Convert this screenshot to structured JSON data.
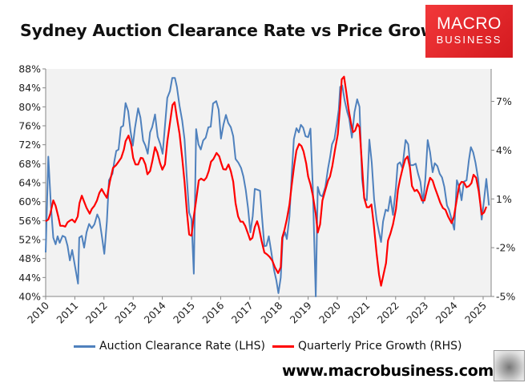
{
  "title": "Sydney Auction Clearance Rate vs Price Growth",
  "logo": {
    "line1": "MACRO",
    "line2": "BUSINESS",
    "color": "#e3252a"
  },
  "website": "www.macrobusiness.com.au",
  "wolf_image": "wolf-logo",
  "chart_data": {
    "type": "line",
    "title": "Sydney Auction Clearance Rate vs Price Growth",
    "xlim": [
      2010,
      2025.3
    ],
    "x_tick_labels": [
      "2010",
      "2011",
      "2012",
      "2013",
      "2014",
      "2015",
      "2016",
      "2017",
      "2018",
      "2019",
      "2020",
      "2021",
      "2022",
      "2023",
      "2024",
      "2025"
    ],
    "y_left": {
      "ylim": [
        40,
        88
      ],
      "tick_labels": [
        "40%",
        "44%",
        "48%",
        "52%",
        "56%",
        "60%",
        "64%",
        "68%",
        "72%",
        "76%",
        "80%",
        "84%",
        "88%"
      ],
      "ticks": [
        40,
        44,
        48,
        52,
        56,
        60,
        64,
        68,
        72,
        76,
        80,
        84,
        88
      ]
    },
    "y_right": {
      "ylim": [
        -5,
        9
      ],
      "tick_labels": [
        "-5%",
        "-2%",
        "1%",
        "4%",
        "7%"
      ],
      "ticks": [
        -5,
        -2,
        1,
        4,
        7
      ]
    },
    "grid": false,
    "plot_background": "#f2f2f2",
    "legend_position": "bottom",
    "series": [
      {
        "name": "Auction Clearance Rate (LHS)",
        "axis": "left",
        "color": "#4f81bd",
        "x": [
          2010.0,
          2010.09,
          2010.18,
          2010.26,
          2010.34,
          2010.41,
          2010.48,
          2010.58,
          2010.67,
          2010.75,
          2010.83,
          2010.91,
          2011.01,
          2011.11,
          2011.15,
          2011.24,
          2011.32,
          2011.4,
          2011.49,
          2011.58,
          2011.67,
          2011.77,
          2011.84,
          2011.92,
          2012.01,
          2012.1,
          2012.17,
          2012.29,
          2012.36,
          2012.42,
          2012.5,
          2012.58,
          2012.66,
          2012.74,
          2012.83,
          2012.91,
          2012.99,
          2013.06,
          2013.17,
          2013.25,
          2013.34,
          2013.42,
          2013.5,
          2013.58,
          2013.65,
          2013.75,
          2013.84,
          2013.93,
          2014.01,
          2014.09,
          2014.17,
          2014.26,
          2014.34,
          2014.43,
          2014.5,
          2014.59,
          2014.68,
          2014.76,
          2014.84,
          2014.92,
          2015.0,
          2015.08,
          2015.16,
          2015.24,
          2015.32,
          2015.4,
          2015.49,
          2015.58,
          2015.66,
          2015.74,
          2015.85,
          2015.93,
          2016.01,
          2016.1,
          2016.18,
          2016.26,
          2016.35,
          2016.43,
          2016.51,
          2016.61,
          2016.7,
          2016.78,
          2016.86,
          2016.94,
          2017.02,
          2017.1,
          2017.17,
          2017.27,
          2017.35,
          2017.42,
          2017.5,
          2017.57,
          2017.65,
          2017.73,
          2017.83,
          2017.91,
          2017.98,
          2018.06,
          2018.13,
          2018.21,
          2018.27,
          2018.36,
          2018.43,
          2018.51,
          2018.6,
          2018.68,
          2018.75,
          2018.83,
          2018.91,
          2019.0,
          2019.08,
          2019.16,
          2019.26,
          2019.33,
          2019.41,
          2019.49,
          2019.59,
          2019.68,
          2019.75,
          2019.82,
          2019.9,
          2019.98,
          2020.05,
          2020.1,
          2020.17,
          2020.25,
          2020.34,
          2020.41,
          2020.5,
          2020.59,
          2020.68,
          2020.76,
          2020.85,
          2020.93,
          2021.01,
          2021.1,
          2021.18,
          2021.26,
          2021.35,
          2021.43,
          2021.5,
          2021.57,
          2021.66,
          2021.74,
          2021.82,
          2021.91,
          2022.01,
          2022.07,
          2022.15,
          2022.23,
          2022.34,
          2022.43,
          2022.5,
          2022.6,
          2022.69,
          2022.77,
          2022.85,
          2022.94,
          2023.02,
          2023.1,
          2023.18,
          2023.27,
          2023.34,
          2023.43,
          2023.51,
          2023.59,
          2023.67,
          2023.76,
          2023.83,
          2023.92,
          2024.01,
          2024.1,
          2024.18,
          2024.26,
          2024.34,
          2024.43,
          2024.51,
          2024.58,
          2024.66,
          2024.74,
          2024.83,
          2024.95,
          2025.03,
          2025.11,
          2025.2
        ],
        "y": [
          49.3,
          69.5,
          59.0,
          52.4,
          51.0,
          52.7,
          51.3,
          52.8,
          52.5,
          50.7,
          47.6,
          49.8,
          46.2,
          42.7,
          52.4,
          52.8,
          50.3,
          53.5,
          55.3,
          54.4,
          55.2,
          57.3,
          56.3,
          53.0,
          49.0,
          55.8,
          64.5,
          65.9,
          68.7,
          70.7,
          71.0,
          75.7,
          76.0,
          80.8,
          79.1,
          74.9,
          71.8,
          75.5,
          79.7,
          77.7,
          72.9,
          71.8,
          70.1,
          74.6,
          75.7,
          78.4,
          73.7,
          72.1,
          70.1,
          76.0,
          81.9,
          83.3,
          86.1,
          86.1,
          84.2,
          80.2,
          77.1,
          73.2,
          65.0,
          57.7,
          56.3,
          44.8,
          75.3,
          72.1,
          71.0,
          72.9,
          73.5,
          75.7,
          75.8,
          80.7,
          81.2,
          79.4,
          73.3,
          76.3,
          78.3,
          76.6,
          75.7,
          73.8,
          69.0,
          68.2,
          67.1,
          65.3,
          62.5,
          58.6,
          53.5,
          56.9,
          62.7,
          62.5,
          62.3,
          56.6,
          50.6,
          50.7,
          52.7,
          49.6,
          45.6,
          43.4,
          40.7,
          44.0,
          52.4,
          53.5,
          52.1,
          56.9,
          65.1,
          73.2,
          75.5,
          74.6,
          76.2,
          75.6,
          73.8,
          73.6,
          75.4,
          63.1,
          40.0,
          63.1,
          61.4,
          61.1,
          63.1,
          67.0,
          69.3,
          72.1,
          73.2,
          76.3,
          79.4,
          84.2,
          84.5,
          81.4,
          78.9,
          77.5,
          73.5,
          78.9,
          81.6,
          80.0,
          64.8,
          60.6,
          60.3,
          73.1,
          68.2,
          60.6,
          56.1,
          53.5,
          51.5,
          55.8,
          58.3,
          58.0,
          61.1,
          57.2,
          63.1,
          67.9,
          68.3,
          67.1,
          73.0,
          72.1,
          67.7,
          67.7,
          68.0,
          65.9,
          64.2,
          59.7,
          64.8,
          73.0,
          70.4,
          66.2,
          68.1,
          67.5,
          65.9,
          65.1,
          63.1,
          59.2,
          58.3,
          56.3,
          54.1,
          64.5,
          63.1,
          60.3,
          64.2,
          64.5,
          68.7,
          71.5,
          70.4,
          68.2,
          64.8,
          56.2,
          60.3,
          64.8,
          59.2
        ]
      },
      {
        "name": "Quarterly Price Growth (RHS)",
        "axis": "right",
        "color": "#ff0000",
        "x": [
          2010.0,
          2010.09,
          2010.16,
          2010.26,
          2010.34,
          2010.43,
          2010.5,
          2010.59,
          2010.67,
          2010.75,
          2010.84,
          2010.91,
          2011.0,
          2011.1,
          2011.16,
          2011.24,
          2011.32,
          2011.4,
          2011.51,
          2011.58,
          2011.67,
          2011.76,
          2011.84,
          2011.92,
          2012.01,
          2012.1,
          2012.2,
          2012.31,
          2012.41,
          2012.5,
          2012.59,
          2012.68,
          2012.74,
          2012.84,
          2012.93,
          2013.0,
          2013.08,
          2013.17,
          2013.26,
          2013.33,
          2013.42,
          2013.49,
          2013.58,
          2013.66,
          2013.75,
          2013.83,
          2013.92,
          2014.0,
          2014.09,
          2014.17,
          2014.26,
          2014.35,
          2014.42,
          2014.5,
          2014.59,
          2014.68,
          2014.76,
          2014.84,
          2014.92,
          2015.0,
          2015.08,
          2015.16,
          2015.25,
          2015.33,
          2015.43,
          2015.51,
          2015.59,
          2015.67,
          2015.75,
          2015.86,
          2015.95,
          2016.02,
          2016.09,
          2016.18,
          2016.27,
          2016.35,
          2016.43,
          2016.51,
          2016.6,
          2016.68,
          2016.76,
          2016.84,
          2016.94,
          2017.01,
          2017.09,
          2017.17,
          2017.25,
          2017.31,
          2017.4,
          2017.5,
          2017.59,
          2017.68,
          2017.77,
          2017.86,
          2017.97,
          2018.06,
          2018.11,
          2018.19,
          2018.27,
          2018.36,
          2018.44,
          2018.52,
          2018.6,
          2018.69,
          2018.77,
          2018.84,
          2018.93,
          2019.0,
          2019.08,
          2019.16,
          2019.26,
          2019.33,
          2019.41,
          2019.49,
          2019.59,
          2019.68,
          2019.75,
          2019.83,
          2019.92,
          2020.02,
          2020.1,
          2020.15,
          2020.23,
          2020.31,
          2020.39,
          2020.47,
          2020.54,
          2020.61,
          2020.69,
          2020.76,
          2020.85,
          2020.92,
          2021.01,
          2021.09,
          2021.17,
          2021.25,
          2021.35,
          2021.43,
          2021.5,
          2021.58,
          2021.67,
          2021.74,
          2021.82,
          2021.91,
          2022.01,
          2022.08,
          2022.15,
          2022.24,
          2022.33,
          2022.41,
          2022.49,
          2022.56,
          2022.65,
          2022.73,
          2022.82,
          2022.9,
          2022.99,
          2023.09,
          2023.18,
          2023.27,
          2023.34,
          2023.44,
          2023.53,
          2023.62,
          2023.71,
          2023.8,
          2023.92,
          2024.0,
          2024.09,
          2024.18,
          2024.26,
          2024.34,
          2024.43,
          2024.52,
          2024.6,
          2024.67,
          2024.76,
          2024.85,
          2024.95,
          2025.03,
          2025.11
        ],
        "y": [
          -0.37,
          -0.27,
          0.09,
          0.91,
          0.58,
          -0.08,
          -0.65,
          -0.65,
          -0.7,
          -0.44,
          -0.32,
          -0.27,
          -0.44,
          -0.08,
          0.74,
          1.2,
          0.83,
          0.45,
          0.09,
          0.38,
          0.58,
          0.91,
          1.37,
          1.61,
          1.32,
          1.07,
          2.06,
          2.91,
          3.07,
          3.29,
          3.53,
          4.03,
          4.55,
          4.9,
          4.35,
          3.53,
          3.12,
          3.12,
          3.53,
          3.5,
          3.12,
          2.52,
          2.71,
          3.34,
          4.19,
          3.86,
          3.21,
          2.8,
          3.12,
          4.52,
          5.67,
          6.78,
          6.95,
          6.0,
          5.01,
          3.53,
          2.06,
          0.25,
          -1.19,
          -1.26,
          -0.08,
          0.91,
          2.14,
          2.25,
          2.14,
          2.31,
          2.71,
          3.29,
          3.45,
          3.83,
          3.62,
          3.21,
          2.83,
          2.81,
          3.12,
          2.71,
          2.06,
          0.74,
          -0.08,
          -0.4,
          -0.4,
          -0.65,
          -1.14,
          -1.52,
          -1.39,
          -0.73,
          -0.37,
          -0.74,
          -1.56,
          -2.3,
          -2.41,
          -2.57,
          -2.79,
          -3.2,
          -3.56,
          -3.2,
          -1.39,
          -0.9,
          -0.25,
          0.66,
          1.89,
          3.03,
          3.98,
          4.38,
          4.26,
          3.93,
          3.2,
          2.38,
          1.89,
          1.23,
          0.08,
          -1.07,
          -0.57,
          0.9,
          1.56,
          2.13,
          2.38,
          3.03,
          4.02,
          5.0,
          6.8,
          8.36,
          8.52,
          7.54,
          6.48,
          5.66,
          5.11,
          5.2,
          5.62,
          5.41,
          3.03,
          1.07,
          0.49,
          0.49,
          0.66,
          -0.57,
          -2.38,
          -3.66,
          -4.34,
          -3.69,
          -2.95,
          -1.56,
          -1.15,
          -0.57,
          0.38,
          1.56,
          2.21,
          2.87,
          3.44,
          3.61,
          2.95,
          1.8,
          1.48,
          1.56,
          1.31,
          0.9,
          0.9,
          1.72,
          2.3,
          2.13,
          1.72,
          1.23,
          0.77,
          0.44,
          0.33,
          -0.08,
          -0.49,
          -0.08,
          0.9,
          1.84,
          2.05,
          2.02,
          1.72,
          1.8,
          1.97,
          2.49,
          2.3,
          1.48,
          0.05,
          0.16,
          0.52
        ]
      }
    ]
  }
}
